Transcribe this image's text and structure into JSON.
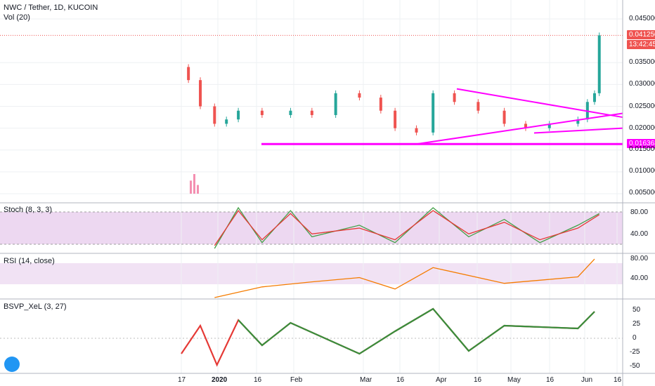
{
  "header": {
    "symbol": "NWC / Tether, 1D, KUCOIN",
    "vol_label": "Vol (20)"
  },
  "price_axis": {
    "ticks": [
      "0.045000",
      "0.041250",
      "0.035000",
      "0.030000",
      "0.025000",
      "0.020000",
      "0.016363",
      "0.015000",
      "0.010000",
      "0.005000"
    ],
    "last_price": "0.041250",
    "countdown": "13:42:45",
    "level_label": "0.016363"
  },
  "x_axis": {
    "ticks": [
      "17",
      "2020",
      "16",
      "Feb",
      "Mar",
      "16",
      "Apr",
      "16",
      "May",
      "16",
      "Jun",
      "16"
    ]
  },
  "panes": {
    "stoch": {
      "title": "Stoch (8, 3, 3)",
      "ticks": [
        "80.00",
        "40.00"
      ]
    },
    "rsi": {
      "title": "RSI (14, close)",
      "ticks": [
        "80.00",
        "40.00"
      ]
    },
    "bsvp": {
      "title": "BSVP_XeL (3, 27)",
      "ticks": [
        "50",
        "25",
        "0",
        "-25",
        "-50"
      ]
    }
  },
  "colors": {
    "up": "#26a69a",
    "down": "#ef5350",
    "trendline": "#ff00ff",
    "stoch_bg": "#e1bee7",
    "rsi_line": "#f57c00",
    "bsvp_green": "#388e3c",
    "bsvp_red": "#e53935"
  },
  "chart_data": {
    "type": "line",
    "title": "NWC / Tether, 1D, KUCOIN",
    "price_close_series": {
      "x": [
        "2019-12-17",
        "2019-12-20",
        "2019-12-25",
        "2019-12-31",
        "2020-01-05",
        "2020-01-10",
        "2020-01-20",
        "2020-02-01",
        "2020-02-10",
        "2020-02-20",
        "2020-03-01",
        "2020-03-10",
        "2020-03-16",
        "2020-03-25",
        "2020-04-01",
        "2020-04-10",
        "2020-04-20",
        "2020-05-01",
        "2020-05-10",
        "2020-05-20",
        "2020-06-01",
        "2020-06-05",
        "2020-06-08",
        "2020-06-10"
      ],
      "y": [
        0.034,
        0.031,
        0.025,
        0.021,
        0.022,
        0.024,
        0.023,
        0.024,
        0.023,
        0.028,
        0.027,
        0.024,
        0.02,
        0.019,
        0.028,
        0.026,
        0.024,
        0.021,
        0.02,
        0.021,
        0.022,
        0.026,
        0.028,
        0.04125
      ]
    },
    "horizontal_level": 0.016363,
    "stoch": {
      "x": [
        "2019-12-31",
        "2020-01-10",
        "2020-01-20",
        "2020-02-01",
        "2020-02-10",
        "2020-03-01",
        "2020-03-16",
        "2020-04-01",
        "2020-04-16",
        "2020-05-01",
        "2020-05-16",
        "2020-06-01",
        "2020-06-10"
      ],
      "k": [
        20,
        90,
        30,
        85,
        40,
        60,
        30,
        90,
        40,
        70,
        30,
        60,
        80
      ],
      "d": [
        25,
        85,
        35,
        80,
        45,
        55,
        35,
        85,
        45,
        65,
        35,
        55,
        78
      ],
      "ylim": [
        20,
        90
      ]
    },
    "rsi": {
      "x": [
        "2019-12-31",
        "2020-01-20",
        "2020-02-10",
        "2020-03-01",
        "2020-03-16",
        "2020-04-01",
        "2020-05-01",
        "2020-06-01",
        "2020-06-08"
      ],
      "y": [
        28,
        43,
        50,
        56,
        40,
        70,
        48,
        57,
        82
      ],
      "ylim": [
        30,
        85
      ]
    },
    "bsvp": {
      "x": [
        "2019-12-17",
        "2019-12-25",
        "2020-01-01",
        "2020-01-10",
        "2020-01-20",
        "2020-02-01",
        "2020-03-01",
        "2020-03-16",
        "2020-04-01",
        "2020-04-16",
        "2020-05-01",
        "2020-06-01",
        "2020-06-08"
      ],
      "y": [
        -30,
        20,
        -50,
        30,
        -15,
        25,
        -30,
        10,
        50,
        -25,
        20,
        15,
        45
      ],
      "ylim": [
        -60,
        60
      ]
    }
  }
}
